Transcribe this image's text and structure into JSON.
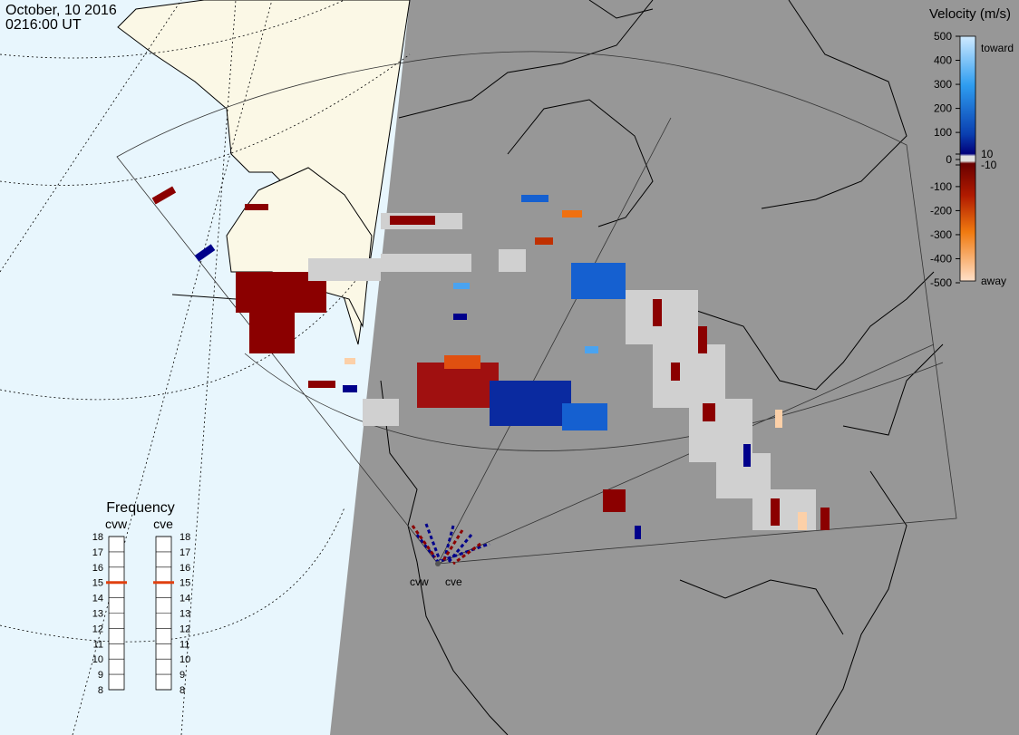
{
  "header": {
    "date": "October, 10 2016",
    "time": "0216:00 UT"
  },
  "colorbar": {
    "title": "Velocity (m/s)",
    "toward": "toward",
    "away": "away",
    "ticks": [
      500,
      400,
      300,
      200,
      100,
      10,
      0,
      -10,
      -100,
      -200,
      -300,
      -400,
      -500
    ]
  },
  "frequency": {
    "title": "Frequency",
    "ticks": [
      18,
      17,
      16,
      15,
      14,
      13,
      12,
      11,
      10,
      9,
      8
    ],
    "radars": [
      {
        "name": "cvw",
        "value": 15
      },
      {
        "name": "cve",
        "value": 15
      }
    ]
  },
  "map": {
    "radar_labels": [
      "cvw",
      "cve"
    ]
  }
}
